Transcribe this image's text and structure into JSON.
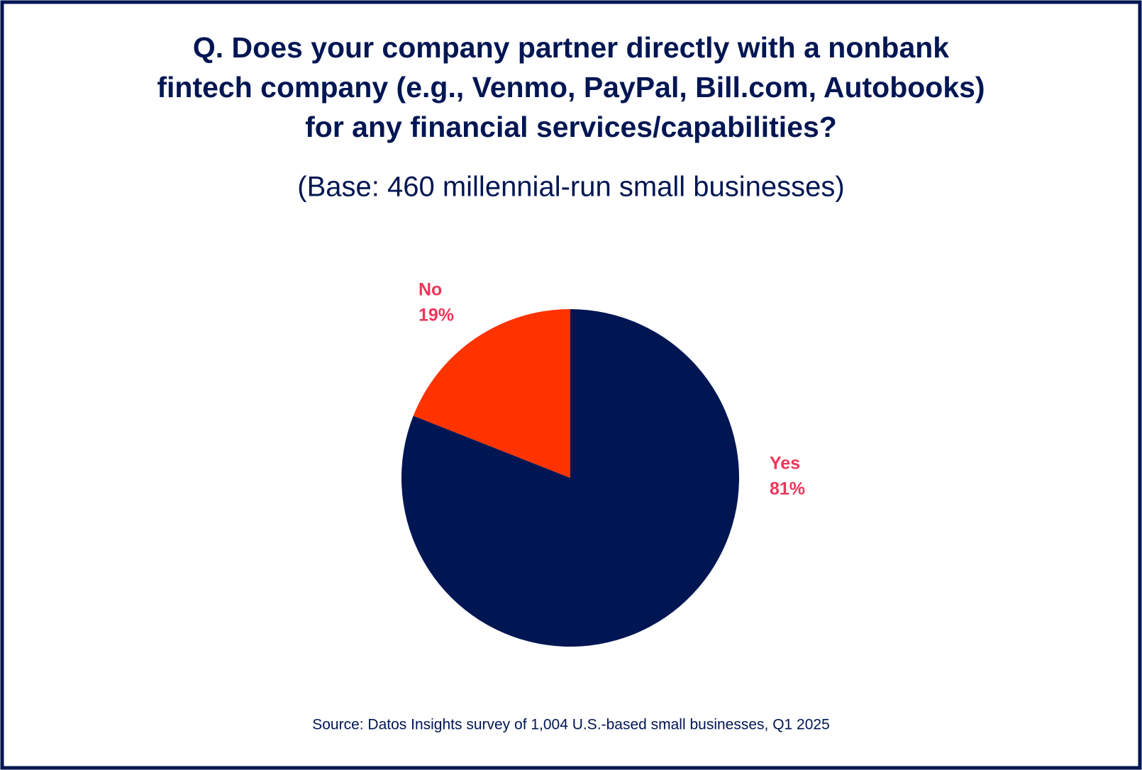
{
  "chart_data": {
    "type": "pie",
    "title": [
      "Q. Does your company partner directly with a nonbank",
      "fintech company (e.g., Venmo, PayPal, Bill.com, Autobooks)",
      "for any financial services/capabilities?"
    ],
    "subtitle": "(Base: 460 millennial-run small businesses)",
    "categories": [
      "Yes",
      "No"
    ],
    "values": [
      81,
      19
    ],
    "value_labels": [
      "81%",
      "19%"
    ],
    "colors": [
      "#001653",
      "#ff3300"
    ],
    "label_color": "#f0365a",
    "source": "Source: Datos Insights survey of 1,004 U.S.-based small businesses, Q1 2025"
  }
}
